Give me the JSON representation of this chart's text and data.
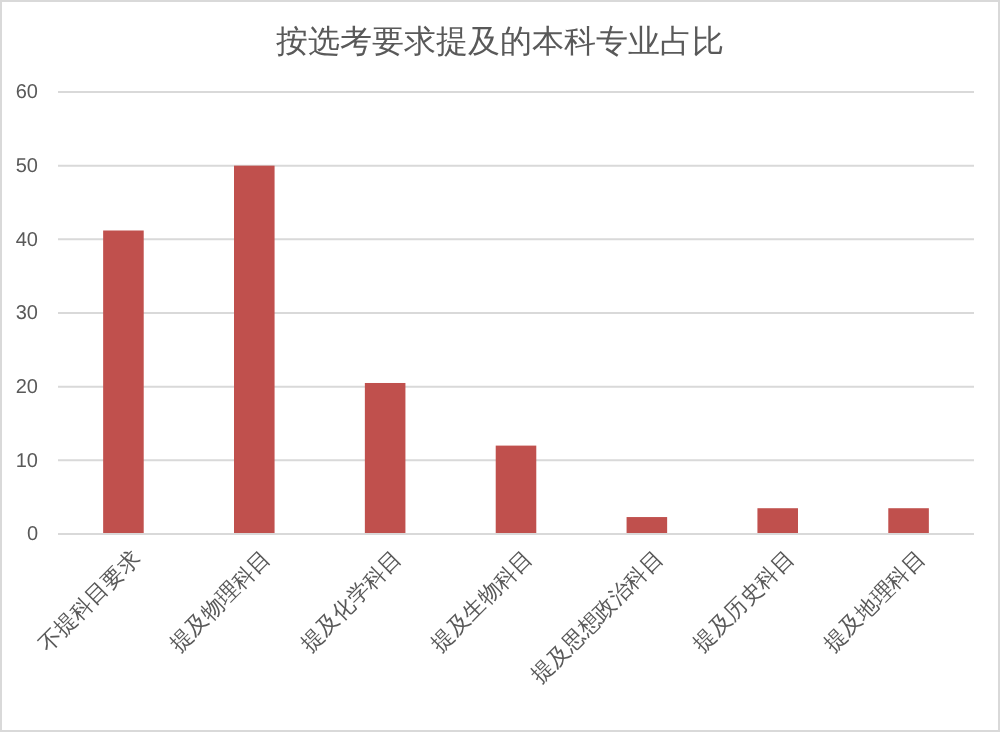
{
  "chart_data": {
    "type": "bar",
    "title": "按选考要求提及的本科专业占比",
    "categories": [
      "不提科目要求",
      "提及物理科目",
      "提及化学科目",
      "提及生物科目",
      "提及思想政治科目",
      "提及历史科目",
      "提及地理科目"
    ],
    "values": [
      41.2,
      50,
      20.5,
      12,
      2.3,
      3.5,
      3.5
    ],
    "color": "#c0504d",
    "ylim": [
      0,
      60
    ],
    "yticks": [
      0,
      10,
      20,
      30,
      40,
      50,
      60
    ],
    "grid": "y"
  }
}
